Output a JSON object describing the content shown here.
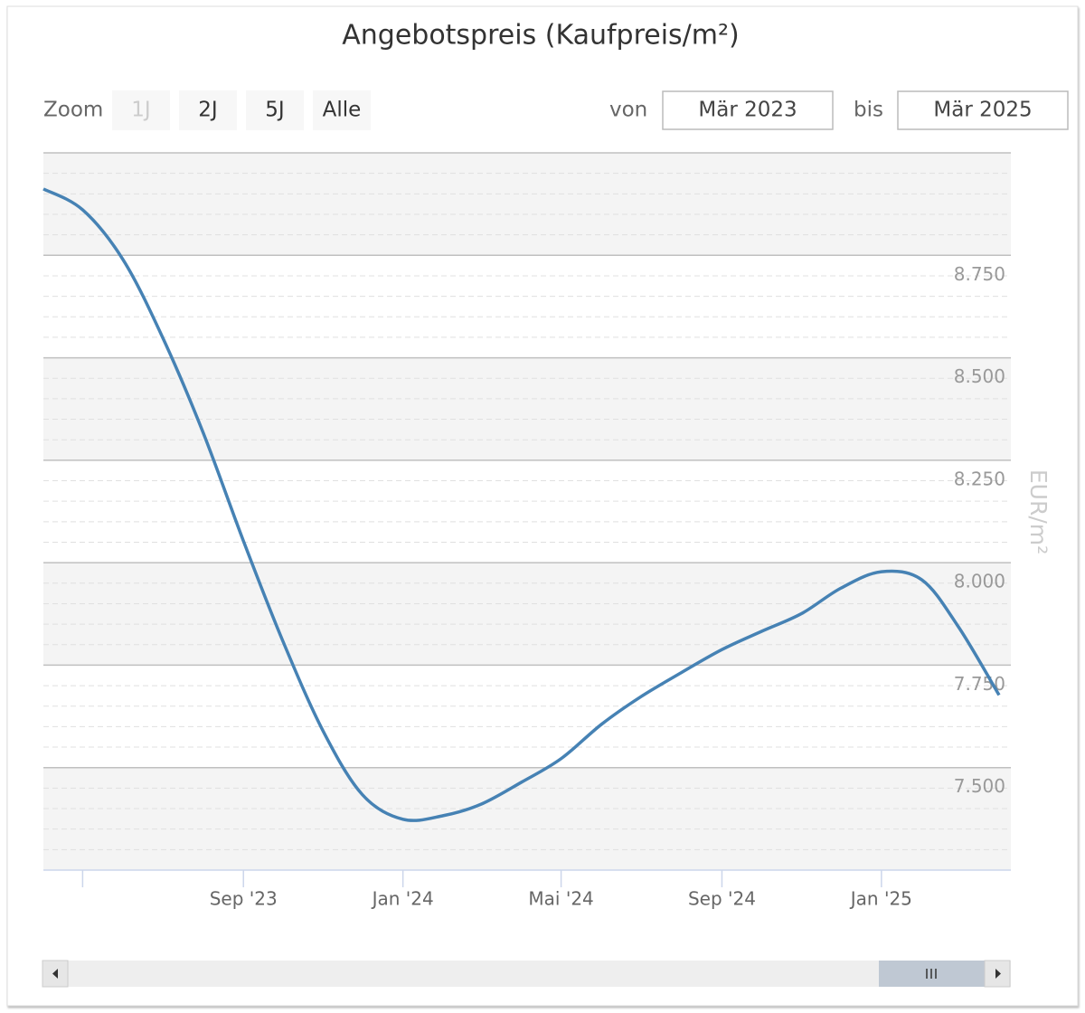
{
  "chart_data": {
    "type": "line",
    "title": "Angebotspreis (Kaufpreis/m²)",
    "controls": {
      "zoom_label": "Zoom",
      "zoom_buttons": [
        "1J",
        "2J",
        "5J",
        "Alle"
      ],
      "disabled_button": 0,
      "from_label": "von",
      "from_value": "Mär 2023",
      "to_label": "bis",
      "to_value": "Mär 2025"
    },
    "y_axis_title": "EUR/m²",
    "x": [
      "2023-04-01",
      "2023-05-01",
      "2023-06-01",
      "2023-07-01",
      "2023-08-01",
      "2023-09-01",
      "2023-10-01",
      "2023-11-01",
      "2023-12-01",
      "2024-01-01",
      "2024-02-01",
      "2024-03-01",
      "2024-04-01",
      "2024-05-01",
      "2024-06-01",
      "2024-07-01",
      "2024-08-01",
      "2024-09-01",
      "2024-10-01",
      "2024-11-01",
      "2024-12-01",
      "2025-01-01",
      "2025-02-01",
      "2025-03-01",
      "2025-04-01"
    ],
    "series": [
      {
        "color": "#4682b4",
        "values": [
          8912,
          8861,
          8739,
          8551,
          8319,
          8053,
          7810,
          7589,
          7434,
          7374,
          7383,
          7411,
          7465,
          7522,
          7606,
          7673,
          7732,
          7788,
          7832,
          7876,
          7938,
          7978,
          7958,
          7843,
          7677
        ]
      }
    ],
    "xlim": [
      "2023-04-01",
      "2025-04-10"
    ],
    "xticks": [
      {
        "value": "2023-05-01",
        "label": null
      },
      {
        "value": "2023-09-01",
        "label": "Sep '23"
      },
      {
        "value": "2024-01-01",
        "label": "Jan '24"
      },
      {
        "value": "2024-05-01",
        "label": "Mai '24"
      },
      {
        "value": "2024-09-01",
        "label": "Sep '24"
      },
      {
        "value": "2025-01-01",
        "label": "Jan '25"
      }
    ],
    "ylim": [
      7250,
      9000
    ],
    "yticks": [
      {
        "value": 7500,
        "label": "7.500"
      },
      {
        "value": 7750,
        "label": "7.750"
      },
      {
        "value": 8000,
        "label": "8.000"
      },
      {
        "value": 8250,
        "label": "8.250"
      },
      {
        "value": 8500,
        "label": "8.500"
      },
      {
        "value": 8750,
        "label": "8.750"
      }
    ],
    "grid": true,
    "minor_tick_interval": 50,
    "alternate_band_color": "#f4f4f4"
  }
}
